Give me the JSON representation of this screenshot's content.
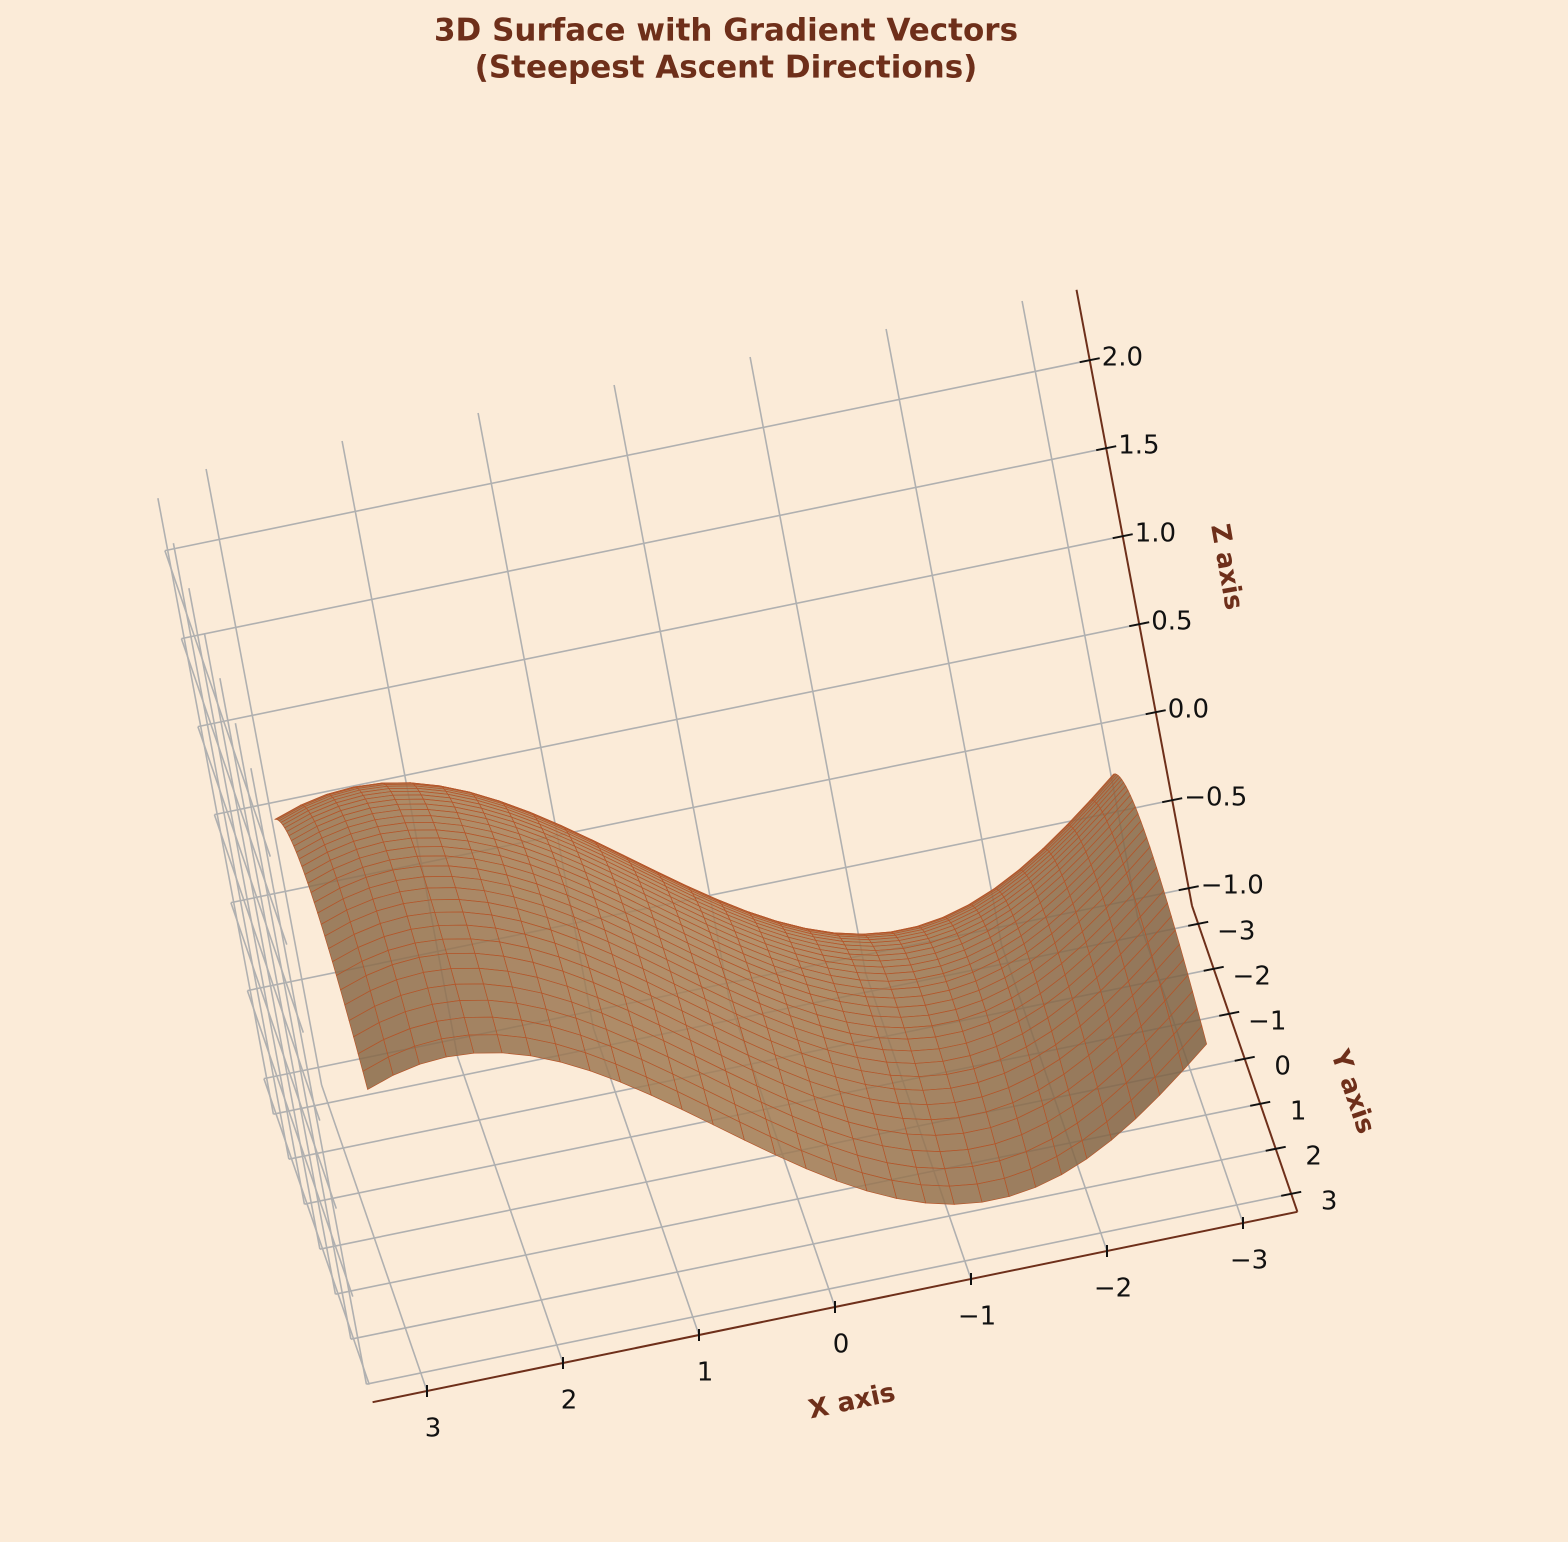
{
  "chart_data": {
    "type": "surface",
    "title": "3D Surface with Gradient Vectors",
    "subtitle": "(Steepest Ascent Directions)",
    "xlabel": "X axis",
    "ylabel": "Y axis",
    "zlabel": "Z axis",
    "xlim": [
      -3.4,
      3.4
    ],
    "ylim": [
      -3.4,
      3.4
    ],
    "zlim": [
      -1.1,
      2.4
    ],
    "xticks": [
      {
        "value": -3,
        "label": "−3"
      },
      {
        "value": -2,
        "label": "−2"
      },
      {
        "value": -1,
        "label": "−1"
      },
      0,
      1,
      2,
      3
    ],
    "yticks": [
      {
        "value": -3,
        "label": "−3"
      },
      {
        "value": -2,
        "label": "−2"
      },
      {
        "value": -1,
        "label": "−1"
      },
      0,
      1,
      2,
      3
    ],
    "zticks": [
      {
        "value": -1.0,
        "label": "−1.0"
      },
      {
        "value": -0.5,
        "label": "−0.5"
      },
      {
        "value": 0.0,
        "label": "0.0"
      },
      0.5,
      {
        "value": 1.0,
        "label": "1.0"
      },
      {
        "value": 1.5,
        "label": "1.5"
      },
      {
        "value": 2.0,
        "label": "2.0"
      }
    ],
    "grid": true,
    "color": "#c89a6a"
  }
}
